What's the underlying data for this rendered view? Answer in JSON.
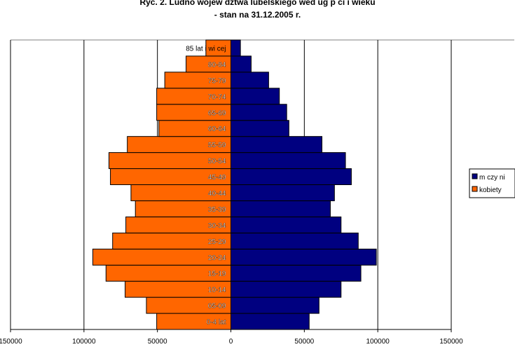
{
  "chart_data": {
    "type": "bar",
    "orientation": "horizontal",
    "layout": "population-pyramid",
    "title": "Ryc. 2. Ludno     wojew  dztwa lubelskiego wed ug p ci i wieku",
    "subtitle": "- stan na 31.12.2005 r.",
    "categories": [
      "0-4 lat",
      "05-09",
      "10-14",
      "15-19",
      "20-24",
      "25-29",
      "30-34",
      "35-39",
      "40-44",
      "45-49",
      "50-54",
      "55-59",
      "60-64",
      "65-69",
      "70-74",
      "75-79",
      "80-84",
      "85 lat i wi cej"
    ],
    "series": [
      {
        "name": "m  czy ni",
        "color": "#000080",
        "side": "right",
        "values": [
          53300,
          60000,
          75000,
          88500,
          99000,
          86700,
          75000,
          67700,
          70500,
          82000,
          78000,
          62000,
          39500,
          38000,
          33000,
          25700,
          13800,
          6500
        ]
      },
      {
        "name": "kobiety",
        "color": "#FF6600",
        "side": "left",
        "values": [
          50500,
          57500,
          72000,
          85000,
          94000,
          80500,
          71500,
          65000,
          68000,
          82000,
          83000,
          70500,
          49000,
          50500,
          50500,
          45000,
          30500,
          17000
        ]
      }
    ],
    "xlim": [
      -150000,
      150000
    ],
    "xticks": [
      -150000,
      -100000,
      -50000,
      0,
      50000,
      100000,
      150000
    ],
    "xtick_labels": [
      "150000",
      "100000",
      "50000",
      "0",
      "50000",
      "100000",
      "150000"
    ],
    "grid": "vertical",
    "legend": "right"
  }
}
